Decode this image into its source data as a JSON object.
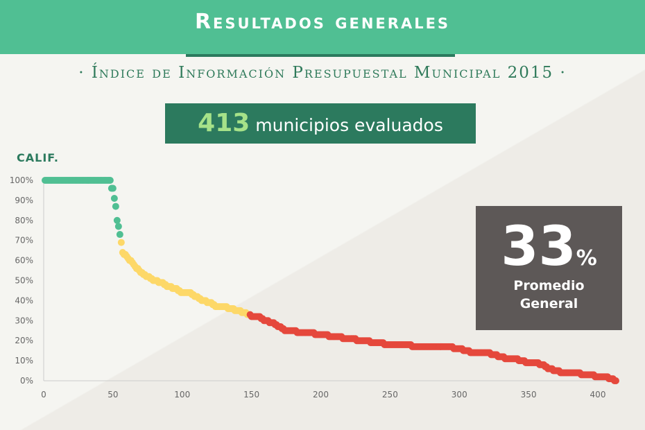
{
  "header": {
    "title": "Resultados generales"
  },
  "subtitle": "· Índice de Información Presupuestal Municipal 2015 ·",
  "count": {
    "number": "413",
    "label": "municipios evaluados"
  },
  "average": {
    "number": "33",
    "unit": "%",
    "label_line1": "Promedio",
    "label_line2": "General"
  },
  "colors": {
    "green": "#50bf93",
    "yellow": "#fdd868",
    "red": "#e5483c",
    "dark_green": "#2c7a5e",
    "gray_box": "#5d5857"
  },
  "chart_data": {
    "type": "scatter",
    "ylabel": "CALIF.",
    "xlim": [
      0,
      415
    ],
    "ylim": [
      0,
      100
    ],
    "xticks": [
      0,
      50,
      100,
      150,
      200,
      250,
      300,
      350,
      400
    ],
    "yticks": [
      0,
      10,
      20,
      30,
      40,
      50,
      60,
      70,
      80,
      90,
      100
    ],
    "ytick_labels": [
      "0%",
      "10%",
      "20%",
      "30%",
      "40%",
      "50%",
      "60%",
      "70%",
      "80%",
      "90%",
      "100%"
    ],
    "x": [
      1,
      50,
      51,
      52,
      53,
      54,
      55,
      56,
      57,
      60,
      65,
      70,
      75,
      80,
      85,
      90,
      95,
      100,
      105,
      110,
      115,
      120,
      125,
      130,
      135,
      140,
      145,
      148,
      150,
      155,
      160,
      165,
      170,
      175,
      180,
      185,
      190,
      200,
      210,
      220,
      230,
      240,
      250,
      260,
      270,
      280,
      290,
      300,
      305,
      310,
      320,
      325,
      330,
      335,
      340,
      345,
      350,
      355,
      360,
      365,
      370,
      375,
      380,
      385,
      390,
      395,
      400,
      405,
      410,
      413
    ],
    "y": [
      100,
      96,
      91,
      87,
      80,
      77,
      73,
      69,
      64,
      62,
      58,
      54,
      52,
      50,
      49,
      47,
      46,
      44,
      44,
      42,
      40,
      39,
      37,
      37,
      36,
      35,
      34,
      33,
      32,
      32,
      30,
      29,
      27,
      25,
      25,
      24,
      24,
      23,
      22,
      21,
      20,
      19,
      18,
      18,
      17,
      17,
      17,
      16,
      15,
      14,
      14,
      13,
      12,
      11,
      11,
      10,
      9,
      9,
      8,
      6,
      5,
      4,
      4,
      4,
      3,
      3,
      2,
      2,
      1,
      0
    ],
    "plateau": {
      "x_start": 1,
      "x_end": 48,
      "y": 100
    },
    "color_bands": [
      {
        "from": 0,
        "to": 55,
        "color": "#50bf93"
      },
      {
        "from": 56,
        "to": 148,
        "color": "#fdd868"
      },
      {
        "from": 149,
        "to": 413,
        "color": "#e5483c"
      }
    ]
  }
}
